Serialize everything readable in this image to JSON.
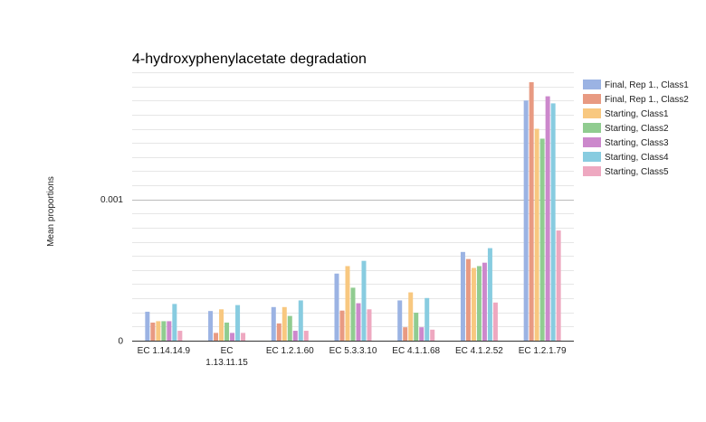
{
  "chart_data": {
    "type": "bar",
    "title": "4-hydroxyphenylacetate degradation",
    "xlabel": "",
    "ylabel": "Mean proportions",
    "ylim": [
      0,
      0.0019
    ],
    "yticks": [
      {
        "value": 0,
        "label": "0"
      },
      {
        "value": 0.001,
        "label": "0.001"
      }
    ],
    "grid": true,
    "legend_position": "right",
    "categories": [
      [
        "EC 1.14.14.9"
      ],
      [
        "EC",
        "1.13.11.15"
      ],
      [
        "EC 1.2.1.60"
      ],
      [
        "EC 5.3.3.10"
      ],
      [
        "EC 4.1.1.68"
      ],
      [
        "EC 4.1.2.52"
      ],
      [
        "EC 1.2.1.79"
      ]
    ],
    "series": [
      {
        "name": "Final, Rep 1., Class1",
        "color": "#9bb3e3",
        "values": [
          0.000205,
          0.00021,
          0.000238,
          0.000475,
          0.000285,
          0.000628,
          0.0017
        ]
      },
      {
        "name": "Final, Rep 1., Class2",
        "color": "#e89a82",
        "values": [
          0.000128,
          5.5e-05,
          0.000122,
          0.000213,
          9.5e-05,
          0.000578,
          0.00183
        ]
      },
      {
        "name": "Starting, Class1",
        "color": "#f8c880",
        "values": [
          0.000138,
          0.000222,
          0.000238,
          0.000528,
          0.000342,
          0.000515,
          0.0015
        ]
      },
      {
        "name": "Starting, Class2",
        "color": "#90cc90",
        "values": [
          0.000138,
          0.000128,
          0.000175,
          0.000375,
          0.000198,
          0.000528,
          0.00143
        ]
      },
      {
        "name": "Starting, Class3",
        "color": "#cc88cc",
        "values": [
          0.000138,
          5.5e-05,
          7e-05,
          0.000265,
          9.5e-05,
          0.000552,
          0.00173
        ]
      },
      {
        "name": "Starting, Class4",
        "color": "#88cce0",
        "values": [
          0.00026,
          0.000252,
          0.000285,
          0.000565,
          0.000302,
          0.000655,
          0.00168
        ]
      },
      {
        "name": "Starting, Class5",
        "color": "#eea8c0",
        "values": [
          7e-05,
          5.5e-05,
          7e-05,
          0.000222,
          7.8e-05,
          0.00027,
          0.00078
        ]
      }
    ]
  }
}
